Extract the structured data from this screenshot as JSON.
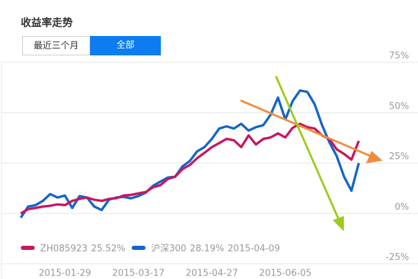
{
  "chart_data": {
    "type": "line",
    "title": "收益率走势",
    "controls": [
      "最近三个月",
      "全部"
    ],
    "categories": [
      null,
      null,
      null,
      null,
      null,
      null,
      "2015-01-29",
      null,
      null,
      null,
      null,
      null,
      null,
      null,
      null,
      null,
      "2015-03-17",
      null,
      null,
      null,
      null,
      null,
      null,
      null,
      null,
      null,
      "2015-04-27",
      null,
      null,
      null,
      null,
      null,
      null,
      null,
      null,
      null,
      "2015-06-05",
      null,
      null,
      null,
      null,
      null,
      null,
      null,
      null,
      null,
      null
    ],
    "series": [
      {
        "name": "ZH085923",
        "legend_value": "25.52%",
        "color": "#c8175e",
        "values": [
          0,
          2.1,
          2.7,
          3.4,
          3.8,
          4.5,
          4.1,
          6.2,
          7.2,
          7.9,
          6.8,
          6.2,
          7.2,
          7.5,
          8.9,
          9.2,
          9.9,
          10.6,
          13.0,
          14.0,
          17.1,
          18.2,
          22.0,
          24.0,
          27.4,
          30.1,
          32.9,
          34.9,
          37.0,
          36.3,
          32.9,
          38.7,
          34.2,
          37.0,
          37.7,
          39.7,
          37.7,
          42.5,
          44.5,
          42.8,
          42.1,
          38.7,
          37.0,
          31.8,
          29.5,
          26.7,
          36.0
        ]
      },
      {
        "name": "沪深300",
        "legend_value": "28.19%",
        "color": "#1565c8",
        "values": [
          -2.1,
          3.4,
          4.1,
          6.2,
          9.6,
          7.9,
          8.9,
          2.7,
          8.6,
          7.9,
          3.4,
          1.7,
          6.8,
          7.9,
          8.2,
          7.5,
          8.6,
          10.3,
          13.7,
          15.8,
          17.8,
          18.2,
          23.3,
          26.0,
          30.8,
          32.9,
          37.0,
          42.1,
          43.2,
          42.1,
          44.5,
          41.1,
          42.8,
          43.8,
          49.0,
          57.5,
          46.6,
          55.8,
          61.0,
          60.3,
          54.1,
          43.8,
          35.3,
          28.4,
          18.2,
          11.3,
          25.0
        ]
      }
    ],
    "legend_date": "2015-04-09",
    "ylim": [
      -25,
      75
    ],
    "yticks": [
      {
        "value": -25,
        "label": "-25%"
      },
      {
        "value": 0,
        "label": "0%"
      },
      {
        "value": 25,
        "label": "25%"
      },
      {
        "value": 50,
        "label": "50%"
      },
      {
        "value": 75,
        "label": "75%"
      }
    ],
    "grid": true
  }
}
